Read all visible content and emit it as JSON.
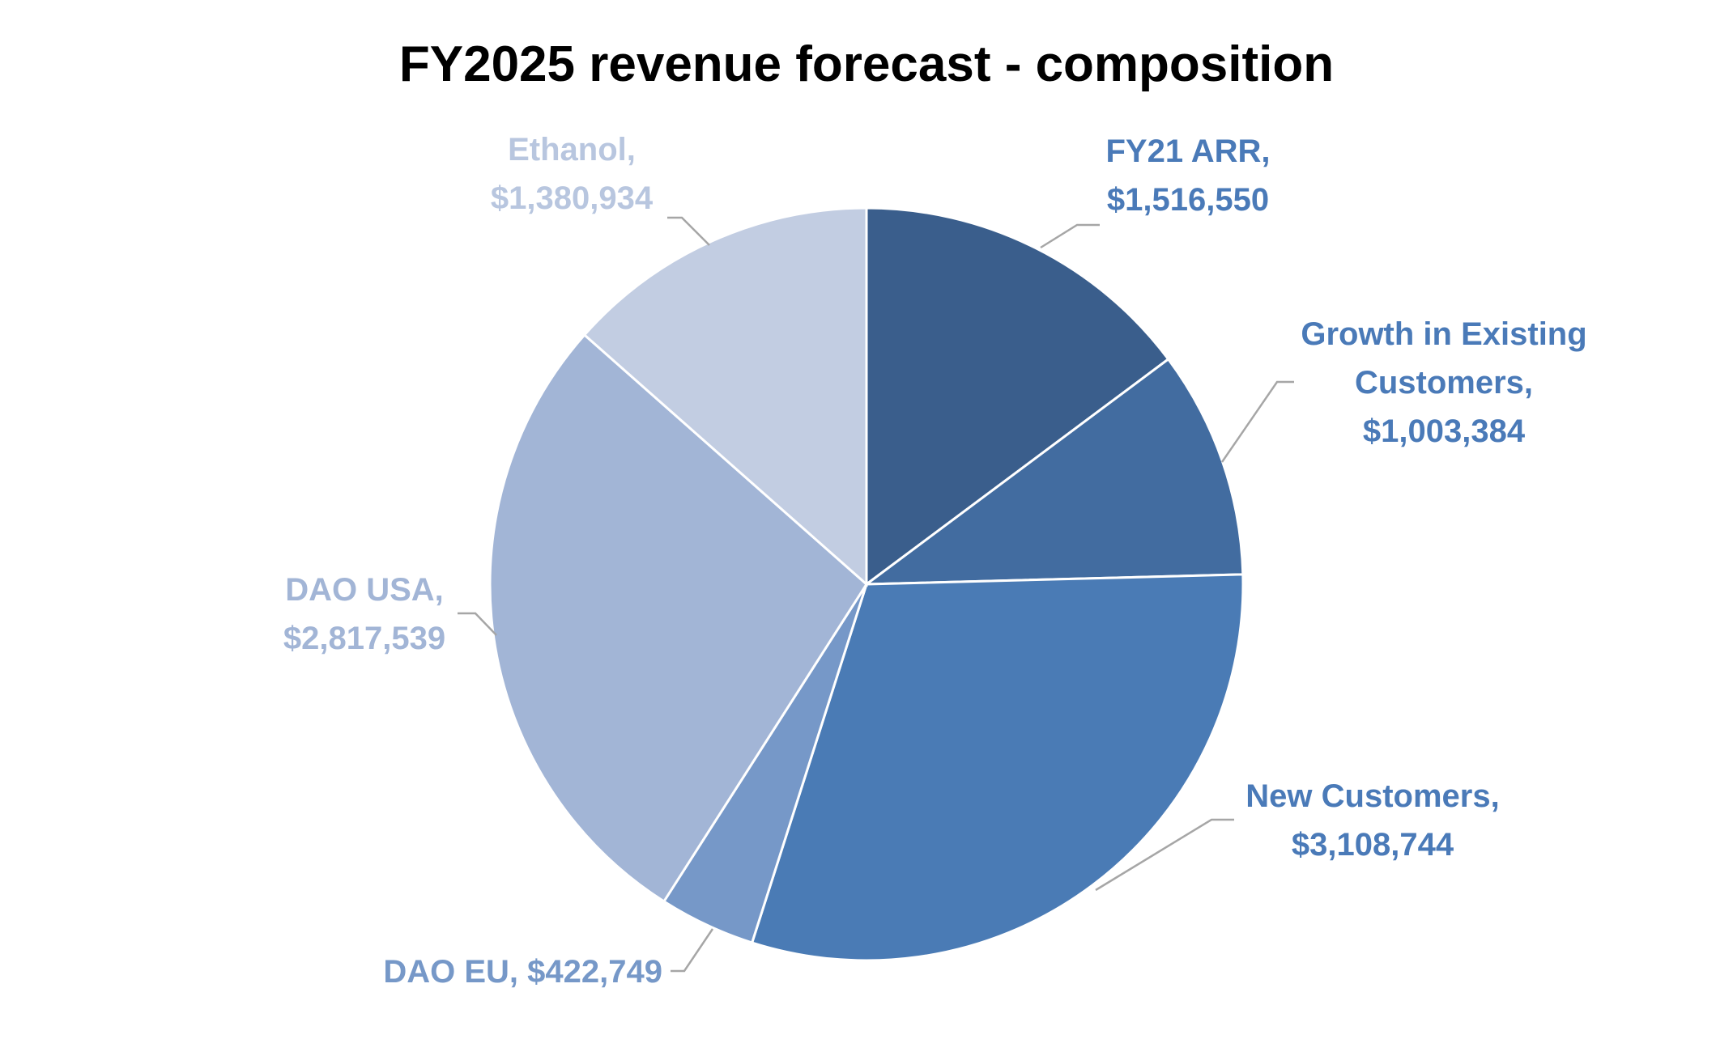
{
  "chart_data": {
    "type": "pie",
    "title": "FY2025 revenue forecast - composition",
    "legend": "none",
    "start_angle_deg": 0,
    "direction": "clockwise",
    "slices": [
      {
        "category": "FY21 ARR",
        "value": 1516550,
        "value_label": "$1,516,550",
        "label_lines": [
          "FY21 ARR,",
          "$1,516,550"
        ],
        "color": "#3a5e8c",
        "label_color": "#4a7ab8"
      },
      {
        "category": "Growth in Existing Customers",
        "value": 1003384,
        "value_label": "$1,003,384",
        "label_lines": [
          "Growth in Existing",
          "Customers,",
          "$1,003,384"
        ],
        "color": "#426ca0",
        "label_color": "#4a7ab8"
      },
      {
        "category": "New Customers",
        "value": 3108744,
        "value_label": "$3,108,744",
        "label_lines": [
          "New Customers,",
          "$3,108,744"
        ],
        "color": "#4a7bb5",
        "label_color": "#4a7ab8"
      },
      {
        "category": "DAO EU",
        "value": 422749,
        "value_label": "$422,749",
        "label_lines": [
          "DAO EU,  $422,749"
        ],
        "color": "#7698c8",
        "label_color": "#7698c8"
      },
      {
        "category": "DAO USA",
        "value": 2817539,
        "value_label": "$2,817,539",
        "label_lines": [
          "DAO USA,",
          "$2,817,539"
        ],
        "color": "#a2b5d6",
        "label_color": "#a2b5d6"
      },
      {
        "category": "Ethanol",
        "value": 1380934,
        "value_label": "$1,380,934",
        "label_lines": [
          "Ethanol,",
          "$1,380,934"
        ],
        "color": "#c2cde2",
        "label_color": "#b8c6df"
      }
    ]
  }
}
